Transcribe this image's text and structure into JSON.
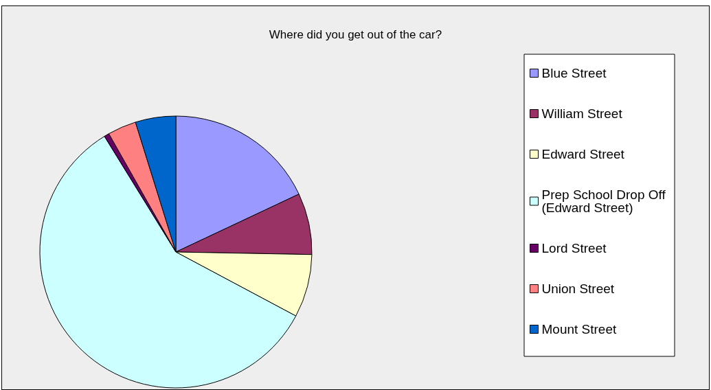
{
  "chart_data": {
    "type": "pie",
    "title": "Where did you get out of the car?",
    "categories": [
      "Blue Street",
      "William Street",
      "Edward Street",
      "Prep School Drop Off (Edward Street)",
      "Lord Street",
      "Union Street",
      "Mount Street"
    ],
    "values": [
      18,
      7.3,
      7.5,
      58.4,
      0.6,
      3.4,
      4.8
    ],
    "colors": [
      "#9999ff",
      "#993366",
      "#ffffcc",
      "#ccffff",
      "#660066",
      "#ff8080",
      "#0066cc"
    ],
    "legend": "right"
  }
}
